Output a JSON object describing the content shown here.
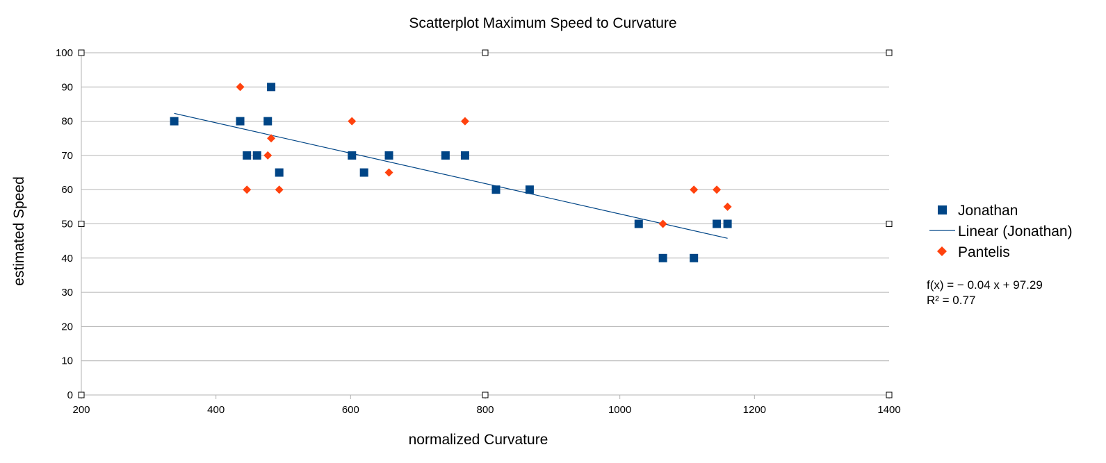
{
  "chart_data": {
    "type": "scatter",
    "title": "Scatterplot Maximum Speed to Curvature",
    "xlabel": "normalized Curvature",
    "ylabel": "estimated Speed",
    "xlim": [
      200,
      1400
    ],
    "ylim": [
      0,
      100
    ],
    "xticks": [
      200,
      400,
      600,
      800,
      1000,
      1200,
      1400
    ],
    "yticks": [
      0,
      10,
      20,
      30,
      40,
      50,
      60,
      70,
      80,
      90,
      100
    ],
    "grid": true,
    "legend_position": "right",
    "series": [
      {
        "name": "Jonathan",
        "marker": "square",
        "color": "#004586",
        "points": [
          [
            338,
            80
          ],
          [
            436,
            80
          ],
          [
            446,
            70
          ],
          [
            461,
            70
          ],
          [
            477,
            80
          ],
          [
            482,
            90
          ],
          [
            494,
            65
          ],
          [
            602,
            70
          ],
          [
            620,
            65
          ],
          [
            657,
            70
          ],
          [
            741,
            70
          ],
          [
            770,
            70
          ],
          [
            816,
            60
          ],
          [
            866,
            60
          ],
          [
            1028,
            50
          ],
          [
            1064,
            40
          ],
          [
            1110,
            40
          ],
          [
            1144,
            50
          ],
          [
            1160,
            50
          ]
        ]
      },
      {
        "name": "Pantelis",
        "marker": "diamond",
        "color": "#ff420e",
        "points": [
          [
            436,
            90
          ],
          [
            446,
            60
          ],
          [
            477,
            70
          ],
          [
            482,
            75
          ],
          [
            494,
            60
          ],
          [
            602,
            80
          ],
          [
            657,
            65
          ],
          [
            770,
            80
          ],
          [
            1064,
            50
          ],
          [
            1110,
            60
          ],
          [
            1144,
            60
          ],
          [
            1160,
            55
          ]
        ]
      }
    ],
    "trendline": {
      "name": "Linear (Jonathan)",
      "color": "#004586",
      "x_range": [
        338,
        1160
      ],
      "equation": "f(x) = − 0.04 x + 97.29",
      "r_squared": "R² = 0.77"
    }
  }
}
